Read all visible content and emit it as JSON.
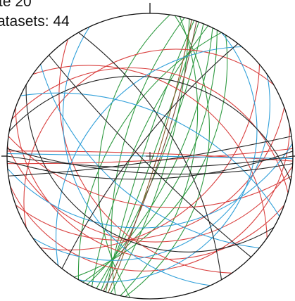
{
  "header": {
    "site": "te 20",
    "datasets": "atasets: 44"
  }
}
